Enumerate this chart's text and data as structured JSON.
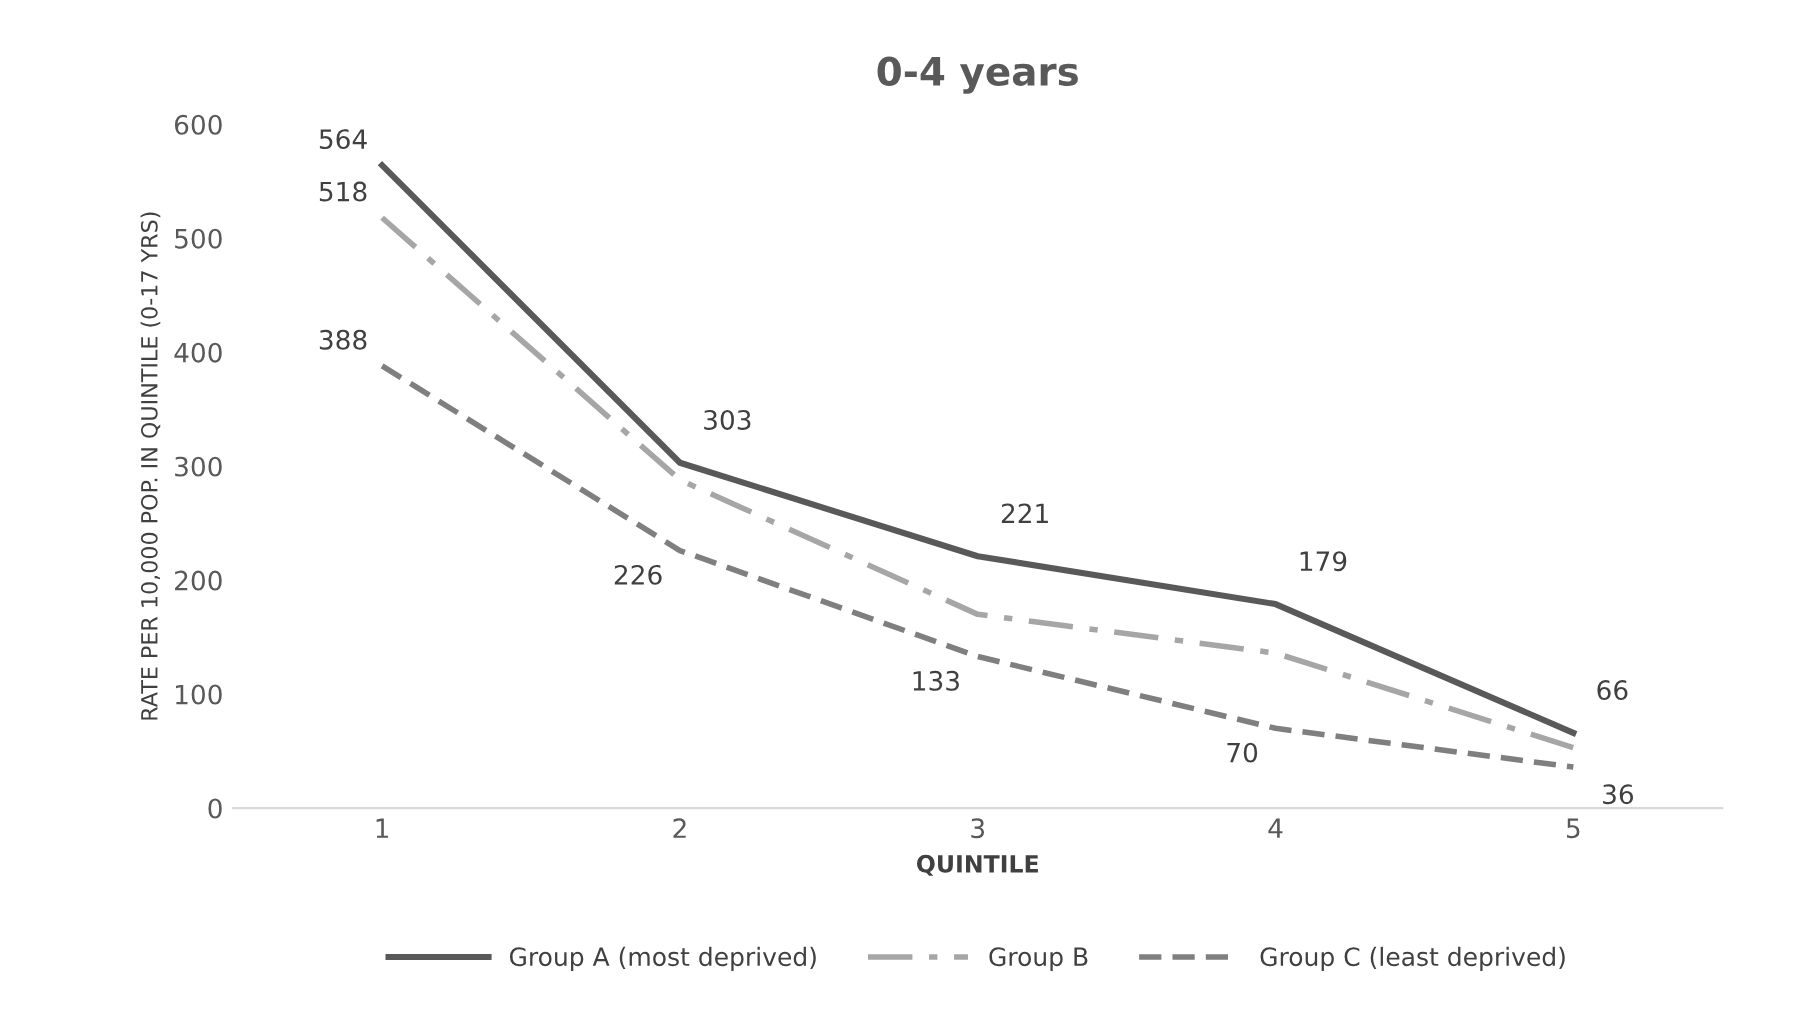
{
  "chart_data": {
    "type": "line",
    "title": "0-4 years",
    "xlabel": "QUINTILE",
    "ylabel": "RATE PER 10,000 POP. IN QUINTILE (0-17 YRS)",
    "categories": [
      "1",
      "2",
      "3",
      "4",
      "5"
    ],
    "series": [
      {
        "name": "Group A (most deprived)",
        "color": "#595959",
        "line_style": "solid",
        "values": [
          564,
          303,
          221,
          179,
          66
        ],
        "value_labels": [
          "564",
          "303",
          "221",
          "179",
          "66"
        ]
      },
      {
        "name": "Group B",
        "color": "#a6a6a6",
        "line_style": "dashdot",
        "values": [
          518,
          288,
          170,
          136,
          53
        ],
        "value_labels": [
          "518",
          null,
          null,
          null,
          null
        ]
      },
      {
        "name": "Group C (least deprived)",
        "color": "#7f7f7f",
        "line_style": "dashed",
        "values": [
          388,
          226,
          133,
          70,
          36
        ],
        "value_labels": [
          "388",
          "226",
          "133",
          "70",
          "36"
        ]
      }
    ],
    "ylim": [
      0,
      600
    ],
    "yticks": [
      0,
      100,
      200,
      300,
      400,
      500,
      600
    ],
    "grid": false,
    "legend": "bottom",
    "marker": "none"
  }
}
